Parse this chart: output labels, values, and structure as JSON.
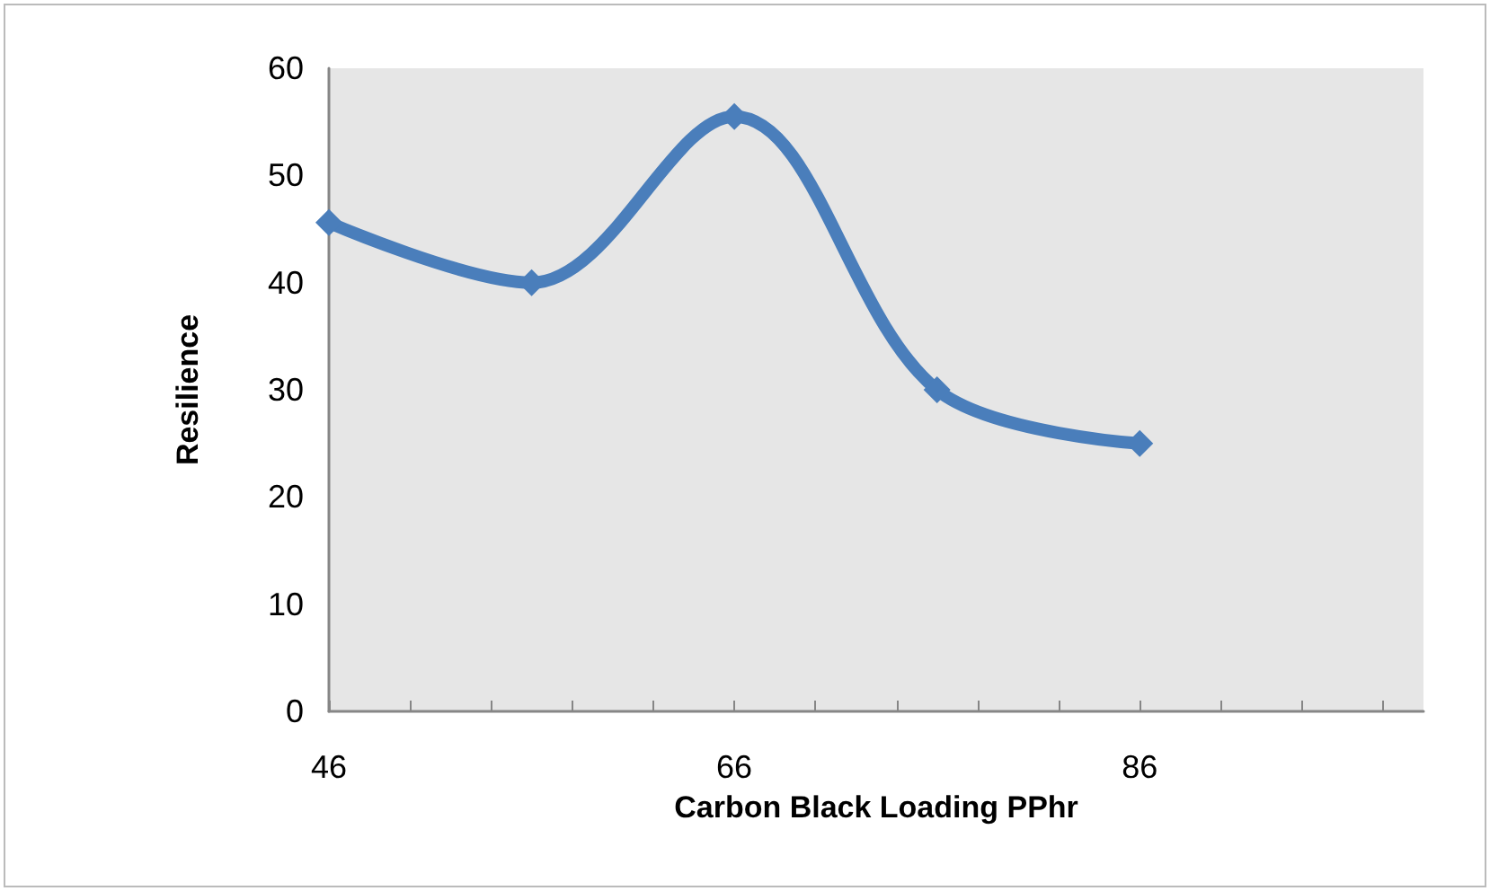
{
  "chart_data": {
    "type": "line",
    "xlabel": "Carbon Black Loading PPhr",
    "ylabel": "Resilience",
    "x": [
      46,
      56,
      66,
      76,
      86
    ],
    "series": [
      {
        "color": "#4a7ebb",
        "values": [
          45.6,
          40,
          55.5,
          30,
          25
        ]
      }
    ],
    "xlim": [
      46,
      100
    ],
    "xticks": [
      46,
      {
        "value": 50,
        "label": null
      },
      {
        "value": 54,
        "label": null
      },
      {
        "value": 58,
        "label": null
      },
      {
        "value": 62,
        "label": null
      },
      66,
      {
        "value": 70,
        "label": null
      },
      {
        "value": 74,
        "label": null
      },
      {
        "value": 78,
        "label": null
      },
      {
        "value": 82,
        "label": null
      },
      86,
      {
        "value": 90,
        "label": null
      },
      {
        "value": 94,
        "label": null
      },
      {
        "value": 98,
        "label": null
      }
    ],
    "ylim": [
      0,
      60
    ],
    "yticks": [
      0,
      10,
      20,
      30,
      40,
      50,
      60
    ],
    "grid": false,
    "marker": "diamond",
    "line_style": "solid"
  }
}
